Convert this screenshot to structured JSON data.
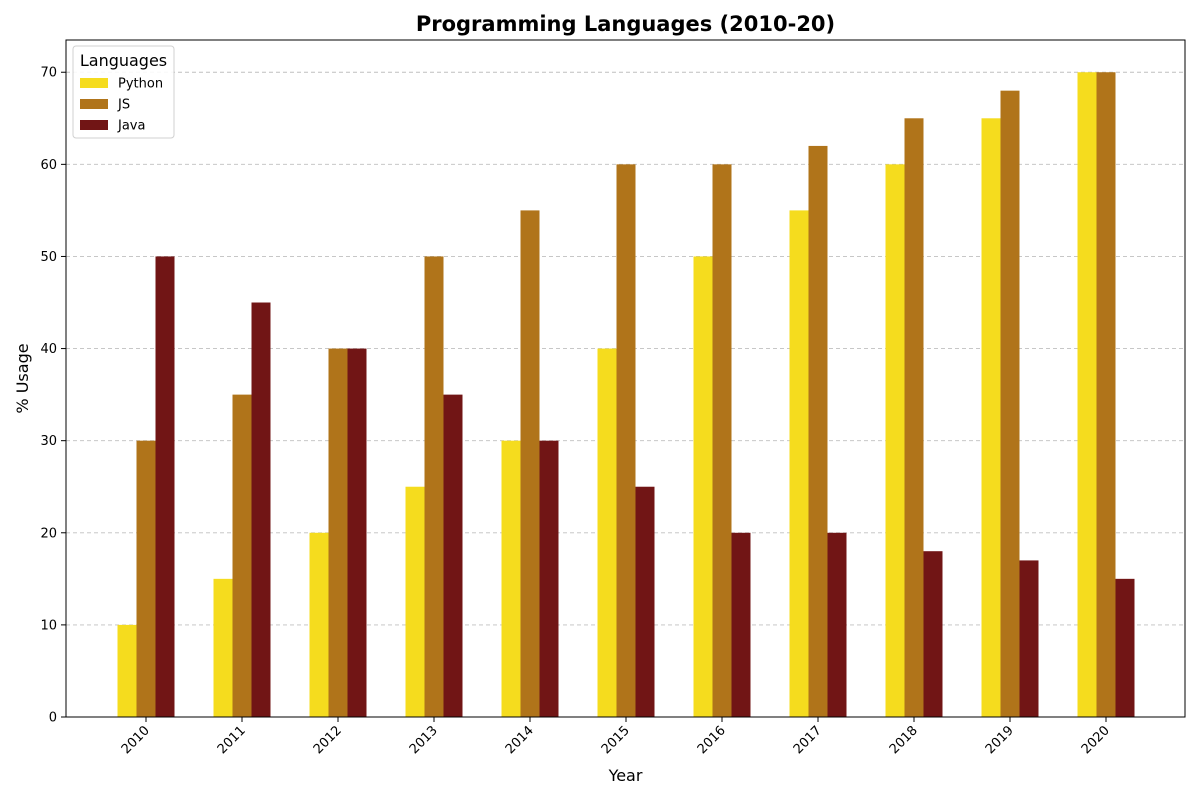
{
  "chart_data": {
    "type": "bar",
    "title": "Programming Languages (2010-20)",
    "xlabel": "Year",
    "ylabel": "% Usage",
    "categories": [
      "2010",
      "2011",
      "2012",
      "2013",
      "2014",
      "2015",
      "2016",
      "2017",
      "2018",
      "2019",
      "2020"
    ],
    "series": [
      {
        "name": "Python",
        "color": "#F5DC1E",
        "values": [
          10,
          15,
          20,
          25,
          30,
          40,
          50,
          55,
          60,
          65,
          70
        ]
      },
      {
        "name": "JS",
        "color": "#B0741A",
        "values": [
          30,
          35,
          40,
          50,
          55,
          60,
          60,
          62,
          65,
          68,
          70
        ]
      },
      {
        "name": "Java",
        "color": "#711515",
        "values": [
          50,
          45,
          40,
          35,
          30,
          25,
          20,
          20,
          18,
          17,
          15
        ]
      }
    ],
    "ylim": [
      0,
      73.5
    ],
    "yticks": [
      0,
      10,
      20,
      30,
      40,
      50,
      60,
      70
    ],
    "grid": "y-dashed",
    "legend": {
      "title": "Languages",
      "placement": "top-left"
    }
  }
}
